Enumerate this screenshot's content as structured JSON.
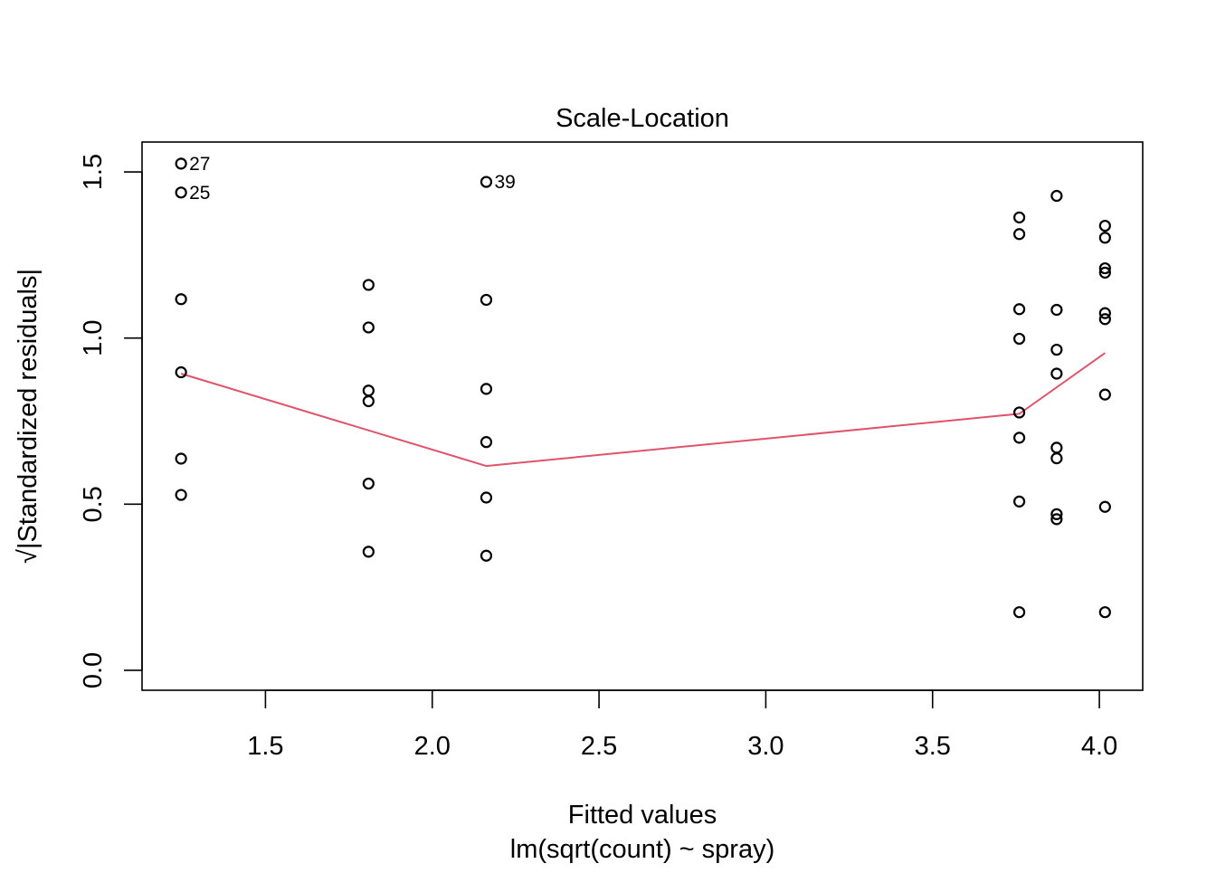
{
  "chart_data": {
    "type": "scatter",
    "title": "Scale-Location",
    "xlabel": "Fitted values",
    "sublabel": "lm(sqrt(count) ~ spray)",
    "ylabel_radical": "√",
    "ylabel": "|Standardized residuals|",
    "xlim": [
      1.13,
      4.13
    ],
    "ylim": [
      -0.06,
      1.59
    ],
    "x_ticks": [
      "1.5",
      "2.0",
      "2.5",
      "3.0",
      "3.5",
      "4.0"
    ],
    "x_tick_values": [
      1.5,
      2.0,
      2.5,
      3.0,
      3.5,
      4.0
    ],
    "y_ticks": [
      "0.0",
      "0.5",
      "1.0",
      "1.5"
    ],
    "y_tick_values": [
      0.0,
      0.5,
      1.0,
      1.5
    ],
    "points": [
      {
        "x": 1.247,
        "y": 1.525,
        "label": "27"
      },
      {
        "x": 1.247,
        "y": 1.438,
        "label": "25"
      },
      {
        "x": 1.247,
        "y": 1.117
      },
      {
        "x": 1.247,
        "y": 0.897
      },
      {
        "x": 1.247,
        "y": 0.637
      },
      {
        "x": 1.247,
        "y": 0.528
      },
      {
        "x": 1.809,
        "y": 1.16
      },
      {
        "x": 1.809,
        "y": 1.032
      },
      {
        "x": 1.809,
        "y": 0.842
      },
      {
        "x": 1.809,
        "y": 0.81
      },
      {
        "x": 1.809,
        "y": 0.562
      },
      {
        "x": 1.809,
        "y": 0.357
      },
      {
        "x": 2.162,
        "y": 1.47,
        "label": "39"
      },
      {
        "x": 2.162,
        "y": 1.115
      },
      {
        "x": 2.162,
        "y": 0.847
      },
      {
        "x": 2.162,
        "y": 0.687
      },
      {
        "x": 2.162,
        "y": 0.52
      },
      {
        "x": 2.162,
        "y": 0.345
      },
      {
        "x": 3.76,
        "y": 1.363
      },
      {
        "x": 3.76,
        "y": 1.313
      },
      {
        "x": 3.76,
        "y": 1.087
      },
      {
        "x": 3.76,
        "y": 0.998
      },
      {
        "x": 3.76,
        "y": 0.776
      },
      {
        "x": 3.76,
        "y": 0.7
      },
      {
        "x": 3.76,
        "y": 0.508
      },
      {
        "x": 3.76,
        "y": 0.175
      },
      {
        "x": 3.872,
        "y": 1.428
      },
      {
        "x": 3.872,
        "y": 1.085
      },
      {
        "x": 3.872,
        "y": 0.965
      },
      {
        "x": 3.872,
        "y": 0.893
      },
      {
        "x": 3.872,
        "y": 0.67
      },
      {
        "x": 3.872,
        "y": 0.638
      },
      {
        "x": 3.872,
        "y": 0.47
      },
      {
        "x": 3.872,
        "y": 0.455
      },
      {
        "x": 4.017,
        "y": 1.338
      },
      {
        "x": 4.017,
        "y": 1.302
      },
      {
        "x": 4.017,
        "y": 1.21
      },
      {
        "x": 4.017,
        "y": 1.197
      },
      {
        "x": 4.017,
        "y": 1.075
      },
      {
        "x": 4.017,
        "y": 1.057
      },
      {
        "x": 4.017,
        "y": 0.83
      },
      {
        "x": 4.017,
        "y": 0.492
      },
      {
        "x": 4.017,
        "y": 0.175
      }
    ],
    "smooth_line": {
      "color": "#DF536B",
      "x": [
        1.247,
        2.162,
        3.76,
        4.017
      ],
      "y": [
        0.893,
        0.615,
        0.772,
        0.955
      ]
    },
    "grid": false,
    "point_style": "open-circle"
  }
}
